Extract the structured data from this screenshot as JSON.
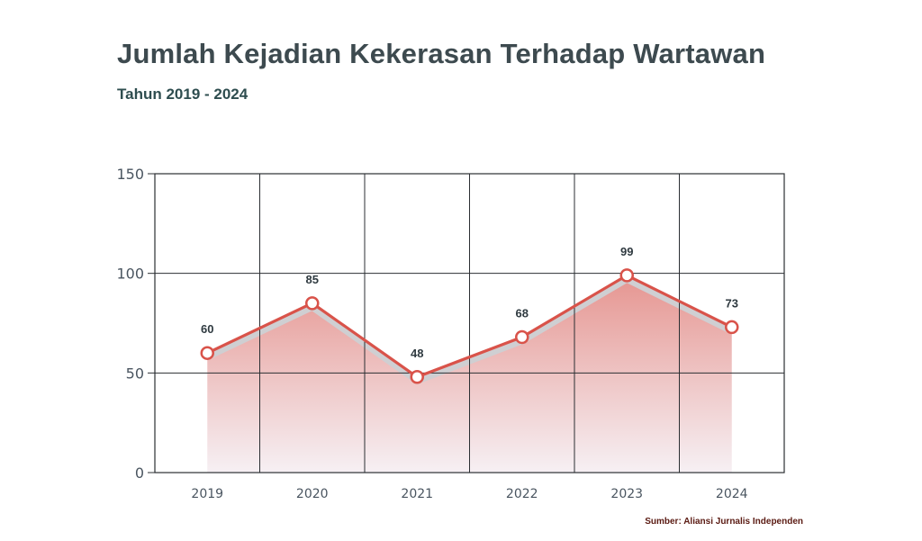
{
  "chart_data": {
    "type": "area",
    "title": "Jumlah Kejadian Kekerasan Terhadap Wartawan",
    "subtitle": "Tahun 2019 - 2024",
    "categories": [
      "2019",
      "2020",
      "2021",
      "2022",
      "2023",
      "2024"
    ],
    "series": [
      {
        "values": [
          60,
          85,
          48,
          68,
          99,
          73
        ],
        "data_labels": [
          "60",
          "85",
          "48",
          "68",
          "99",
          "73"
        ],
        "color": "#d9534a"
      }
    ],
    "ylim": [
      0,
      150
    ],
    "yticks": [
      0,
      50,
      100,
      150
    ],
    "ytick_labels": [
      "0",
      "50",
      "100",
      "150"
    ],
    "xlabel": "",
    "ylabel": "",
    "grid": true,
    "legend": "none"
  },
  "source": "Sumber: Aliansi Jurnalis Independen",
  "colors": {
    "line": "#d9534a",
    "area_top": "#e48f8a",
    "area_bottom": "#f5eef2",
    "grid": "#2b2f33",
    "title": "#3d4a4f"
  }
}
